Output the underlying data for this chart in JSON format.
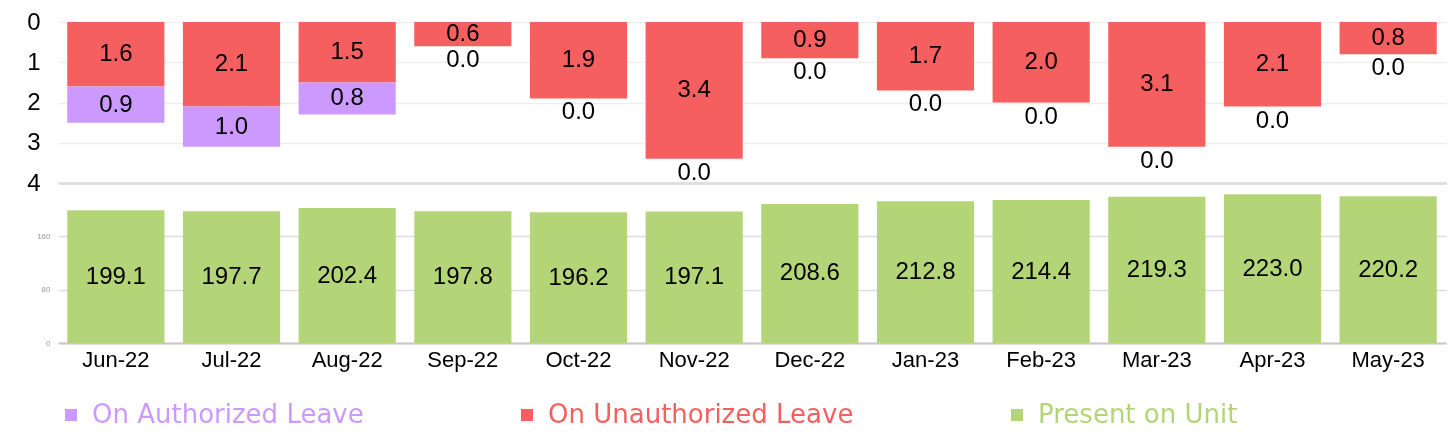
{
  "chart_data": [
    {
      "type": "bar",
      "stacked": true,
      "categories": [
        null,
        null,
        null,
        null,
        null,
        null,
        null,
        null,
        null,
        null,
        null,
        null
      ],
      "series": [
        {
          "name": "On Unauthorized Leave",
          "color": "#f55f5f",
          "values": [
            1.6,
            2.1,
            1.5,
            0.6,
            1.9,
            3.4,
            0.9,
            1.7,
            2.0,
            3.1,
            2.1,
            0.8
          ],
          "value_labels": [
            "1.6",
            "2.1",
            "1.5",
            "0.6",
            "1.9",
            "3.4",
            "0.9",
            "1.7",
            "2.0",
            "3.1",
            "2.1",
            "0.8"
          ]
        },
        {
          "name": "On Authorized Leave",
          "color": "#cc99ff",
          "values": [
            0.9,
            1.0,
            0.8,
            0,
            0,
            0,
            0,
            0,
            0,
            0,
            0,
            0
          ],
          "value_labels": [
            "0.9",
            "1.0",
            "0.8",
            "0.0",
            "0.0",
            "0.0",
            "0.0",
            "0.0",
            "0.0",
            "0.0",
            "0.0",
            "0.0"
          ]
        }
      ],
      "ylim": [
        4,
        0
      ],
      "yticks": [
        0,
        1,
        2,
        3,
        4
      ],
      "grid": "y",
      "legend": "bottom",
      "tick_labels": "y"
    },
    {
      "type": "bar",
      "categories": [
        "Jun-22",
        "Jul-22",
        "Aug-22",
        "Sep-22",
        "Oct-22",
        "Nov-22",
        "Dec-22",
        "Jan-23",
        "Feb-23",
        "Mar-23",
        "Apr-23",
        "May-23"
      ],
      "series": [
        {
          "name": "Present on Unit",
          "color": "#b3d577",
          "values": [
            199.1,
            197.7,
            202.4,
            197.8,
            196.2,
            197.1,
            208.6,
            212.8,
            214.4,
            219.3,
            223,
            220.2
          ],
          "value_labels": [
            "199.1",
            "197.7",
            "202.4",
            "197.8",
            "196.2",
            "197.1",
            "208.6",
            "212.8",
            "214.4",
            "219.3",
            "223.0",
            "220.2"
          ]
        }
      ],
      "ylim": [
        0,
        240
      ],
      "yticks": [
        0,
        80,
        160,
        {
          "value": 240,
          "label": null
        }
      ],
      "grid": "y",
      "legend": "bottom"
    }
  ]
}
